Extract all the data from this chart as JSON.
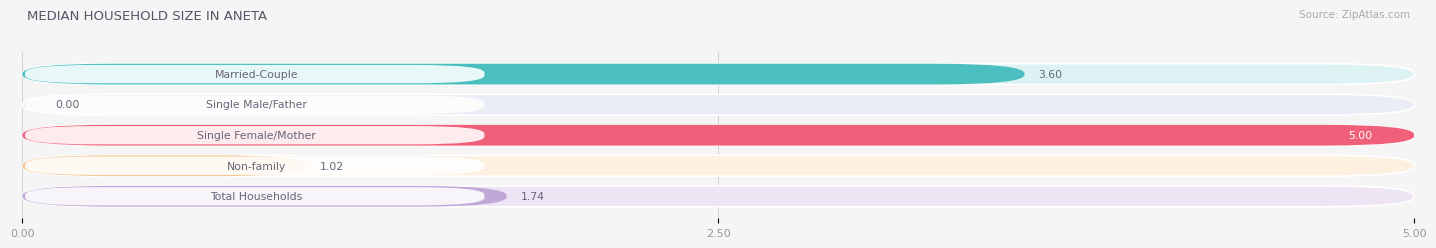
{
  "title": "MEDIAN HOUSEHOLD SIZE IN ANETA",
  "source": "Source: ZipAtlas.com",
  "categories": [
    "Married-Couple",
    "Single Male/Father",
    "Single Female/Mother",
    "Non-family",
    "Total Households"
  ],
  "values": [
    3.6,
    0.0,
    5.0,
    1.02,
    1.74
  ],
  "bar_colors": [
    "#4bbfbf",
    "#98b4e0",
    "#f0607a",
    "#f5c896",
    "#c0a8d8"
  ],
  "bar_bg_colors": [
    "#ddf2f2",
    "#eaecf6",
    "#fce8ef",
    "#fdf0e0",
    "#ede4f4"
  ],
  "xlim": [
    0.0,
    5.0
  ],
  "xticks": [
    0.0,
    2.5,
    5.0
  ],
  "xtick_labels": [
    "0.00",
    "2.50",
    "5.00"
  ],
  "title_color": "#555566",
  "label_color": "#666677",
  "value_color": "#666677",
  "source_color": "#aaaaaa",
  "bg_color": "#f5f5f5",
  "bar_height": 0.68,
  "fig_bg": "#f5f5f5"
}
